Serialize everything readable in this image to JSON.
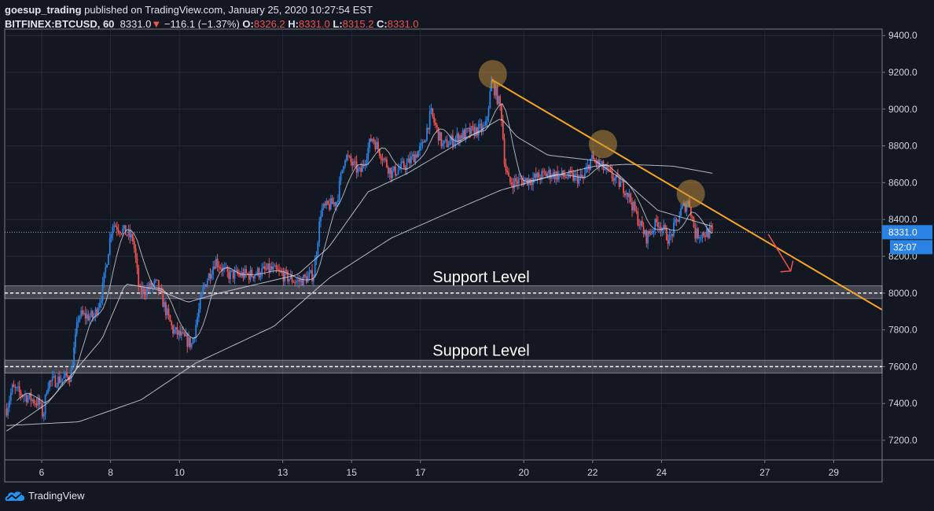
{
  "header": {
    "author": "goesup_trading",
    "published": "published on TradingView.com, January 25, 2020 10:27:54 EST",
    "symbol": "BITFINEX:BTCUSD, 60",
    "last": "8331.0",
    "change": "−116.1 (−1.37%)",
    "o_label": "O:",
    "o": "8326.2",
    "h_label": "H:",
    "h": "8331.0",
    "l_label": "L:",
    "l": "8315.2",
    "c_label": "C:",
    "c": "8331.0"
  },
  "footer": {
    "brand": "TradingView"
  },
  "colors": {
    "bg": "#131722",
    "up": "#2a82e4",
    "down": "#ef5350",
    "trend": "#f7a325",
    "grid": "#262b38",
    "ma": "#d1d4dc"
  },
  "chart_data": {
    "type": "candlestick",
    "symbol": "BITFINEX:BTCUSD",
    "interval": "60",
    "ylim": [
      7100,
      9450
    ],
    "xlim_days": [
      4.95,
      30.4
    ],
    "y_ticks": [
      7200,
      7400,
      7600,
      7800,
      8000,
      8200,
      8400,
      8600,
      8800,
      9000,
      9200,
      9400
    ],
    "y_tick_labels": [
      "7200.0",
      "7400.0",
      "7600.0",
      "7800.0",
      "8000.0",
      "8200.0",
      "8400.0",
      "8600.0",
      "8800.0",
      "9000.0",
      "9200.0",
      "9400.0"
    ],
    "x_ticks": [
      6,
      8,
      10,
      13,
      15,
      17,
      20,
      22,
      24,
      27,
      29
    ],
    "x_tick_labels": [
      "6",
      "8",
      "10",
      "13",
      "15",
      "17",
      "20",
      "22",
      "24",
      "27",
      "29"
    ],
    "price_path": [
      [
        4.98,
        7370
      ],
      [
        5.14,
        7480
      ],
      [
        5.93,
        7400
      ],
      [
        6.05,
        7330
      ],
      [
        6.16,
        7510
      ],
      [
        6.84,
        7550
      ],
      [
        7.07,
        7880
      ],
      [
        7.52,
        7870
      ],
      [
        7.75,
        8000
      ],
      [
        8.05,
        8380
      ],
      [
        8.43,
        8330
      ],
      [
        8.66,
        8290
      ],
      [
        8.84,
        8000
      ],
      [
        9.34,
        8050
      ],
      [
        9.8,
        7800
      ],
      [
        10.36,
        7720
      ],
      [
        10.7,
        8030
      ],
      [
        11.05,
        8180
      ],
      [
        11.39,
        8100
      ],
      [
        12.07,
        8100
      ],
      [
        12.64,
        8130
      ],
      [
        13.43,
        8060
      ],
      [
        13.9,
        8100
      ],
      [
        14.11,
        8450
      ],
      [
        14.57,
        8500
      ],
      [
        14.8,
        8750
      ],
      [
        15.25,
        8650
      ],
      [
        15.59,
        8850
      ],
      [
        16.16,
        8650
      ],
      [
        16.61,
        8700
      ],
      [
        17.07,
        8800
      ],
      [
        17.3,
        8980
      ],
      [
        17.64,
        8800
      ],
      [
        18.2,
        8860
      ],
      [
        18.89,
        8900
      ],
      [
        19.07,
        9150
      ],
      [
        19.34,
        9000
      ],
      [
        19.45,
        8700
      ],
      [
        19.57,
        8600
      ],
      [
        20.25,
        8620
      ],
      [
        20.7,
        8650
      ],
      [
        21.73,
        8620
      ],
      [
        21.95,
        8730
      ],
      [
        22.3,
        8680
      ],
      [
        22.98,
        8560
      ],
      [
        23.32,
        8400
      ],
      [
        23.55,
        8300
      ],
      [
        23.89,
        8390
      ],
      [
        24.23,
        8290
      ],
      [
        24.57,
        8450
      ],
      [
        24.8,
        8500
      ],
      [
        24.98,
        8320
      ],
      [
        25.52,
        8331
      ]
    ],
    "ma_medium": [
      [
        4.98,
        7250
      ],
      [
        6.16,
        7400
      ],
      [
        7.75,
        7750
      ],
      [
        8.43,
        8050
      ],
      [
        9.34,
        8020
      ],
      [
        10.25,
        7950
      ],
      [
        11.16,
        8000
      ],
      [
        13.43,
        8100
      ],
      [
        14.34,
        8250
      ],
      [
        15.48,
        8550
      ],
      [
        16.61,
        8650
      ],
      [
        18.43,
        8850
      ],
      [
        19.34,
        8950
      ],
      [
        19.8,
        8850
      ],
      [
        20.7,
        8750
      ],
      [
        22.07,
        8720
      ],
      [
        22.98,
        8600
      ],
      [
        23.89,
        8450
      ],
      [
        24.8,
        8400
      ],
      [
        25.52,
        8360
      ]
    ],
    "ma_slow": [
      [
        4.98,
        7280
      ],
      [
        7.07,
        7300
      ],
      [
        8.89,
        7420
      ],
      [
        10.48,
        7620
      ],
      [
        12.75,
        7820
      ],
      [
        14.34,
        8080
      ],
      [
        16.16,
        8300
      ],
      [
        17.98,
        8450
      ],
      [
        19.34,
        8560
      ],
      [
        20.7,
        8630
      ],
      [
        22.07,
        8690
      ],
      [
        22.98,
        8700
      ],
      [
        24.34,
        8690
      ],
      [
        25.52,
        8650
      ]
    ],
    "current_price": 8331.0,
    "current_price_label": "8331.0",
    "countdown": "32:07",
    "annotations": {
      "support_levels": [
        {
          "price": 8000,
          "label": "Support Level",
          "band": [
            7970,
            8040
          ]
        },
        {
          "price": 7600,
          "label": "Support Level",
          "band": [
            7565,
            7635
          ]
        }
      ],
      "trendline": [
        [
          19.07,
          9160
        ],
        [
          30.4,
          7910
        ]
      ],
      "touch_points": [
        [
          19.1,
          9190
        ],
        [
          22.3,
          8810
        ],
        [
          24.85,
          8540
        ]
      ],
      "arrow": {
        "from": [
          27.1,
          8320
        ],
        "to": [
          27.75,
          8120
        ],
        "direction": "down"
      }
    }
  }
}
